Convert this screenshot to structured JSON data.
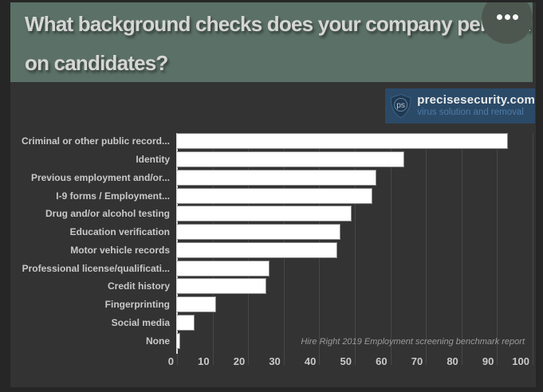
{
  "header": {
    "title_line1": "What background checks does your company perform",
    "title_line2": "on candidates?",
    "menu_icon": "ellipsis-icon"
  },
  "logo": {
    "monogram": "ps",
    "name": "precisesecurity.com",
    "tagline": "virus solution and removal"
  },
  "chart_data": {
    "type": "bar",
    "orientation": "horizontal",
    "title": "What background checks does your company perform on candidates?",
    "categories": [
      "Criminal or other public record...",
      "Identity",
      "Previous employment and/or...",
      "I-9 forms / Employment...",
      "Drug and/or alcohol testing",
      "Education verification",
      "Motor vehicle records",
      "Professional license/qualificati...",
      "Credit history",
      "Fingerprinting",
      "Social media",
      "None"
    ],
    "values": [
      93,
      64,
      56,
      55,
      49,
      46,
      45,
      26,
      25,
      11,
      5,
      1
    ],
    "xlabel": "",
    "ylabel": "",
    "xlim": [
      0,
      100
    ],
    "x_ticks": [
      0,
      10,
      20,
      30,
      40,
      50,
      60,
      70,
      80,
      90,
      100
    ],
    "grid": true,
    "legend": false,
    "bar_color": "#ffffff",
    "annotation": "Hire Right 2019 Employment screening benchmark report"
  },
  "colors": {
    "header_bg": "#5b7066",
    "header_text": "#d6d6d6",
    "menu_circle": "#4d574f",
    "page_bg": "#333333",
    "frame": "#262626",
    "logo_bg": "#2b4a68",
    "logo_name_text": "#ececec",
    "logo_tagline_text": "#4d7ba6",
    "gridline": "#474747",
    "axis_line": "#dcdcdc",
    "label_text": "#c9c9c9",
    "annotation_text": "#9b9b9b"
  }
}
